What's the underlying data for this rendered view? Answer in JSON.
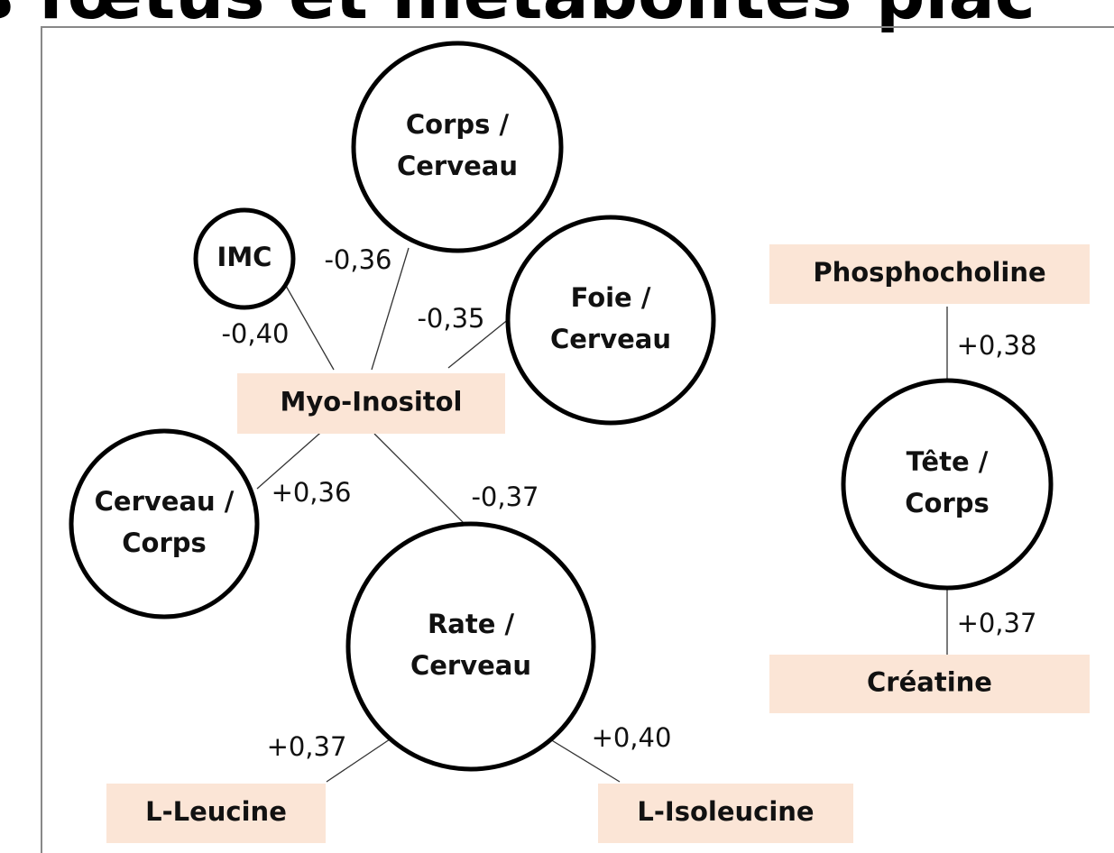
{
  "title": "s fœtus et métabolites plac",
  "nodes": [
    {
      "shape": "circle",
      "lines": [
        "Corps /",
        "Cerveau"
      ]
    },
    {
      "shape": "circle",
      "lines": [
        "IMC"
      ]
    },
    {
      "shape": "circle",
      "lines": [
        "Foie /",
        "Cerveau"
      ]
    },
    {
      "shape": "circle",
      "lines": [
        "Cerveau /",
        "Corps"
      ]
    },
    {
      "shape": "circle",
      "lines": [
        "Rate /",
        "Cerveau"
      ]
    },
    {
      "shape": "circle",
      "lines": [
        "Tête /",
        "Corps"
      ]
    },
    {
      "shape": "box",
      "lines": [
        "Myo-Inositol"
      ]
    },
    {
      "shape": "box",
      "lines": [
        "Phosphocholine"
      ]
    },
    {
      "shape": "box",
      "lines": [
        "Créatine"
      ]
    },
    {
      "shape": "box",
      "lines": [
        "L-Leucine"
      ]
    },
    {
      "shape": "box",
      "lines": [
        "L-Isoleucine"
      ]
    }
  ],
  "edges": [
    {
      "label": "-0,40"
    },
    {
      "label": "-0,36"
    },
    {
      "label": "-0,35"
    },
    {
      "label": "+0,36"
    },
    {
      "label": "-0,37"
    },
    {
      "label": "+0,38"
    },
    {
      "label": "+0,37"
    },
    {
      "label": "+0,37"
    },
    {
      "label": "+0,40"
    }
  ]
}
